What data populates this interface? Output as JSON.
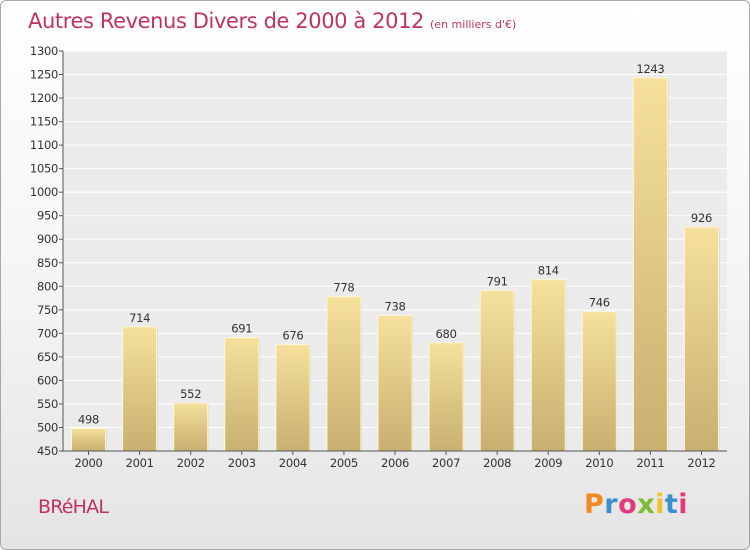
{
  "header": {
    "title": "Autres Revenus Divers de 2000 à 2012",
    "subtitle": "(en milliers d'€)"
  },
  "footer": {
    "town": "BRéHAL",
    "brand": "Proxiti",
    "brand_colors": [
      "#f08a1c",
      "#3a8fd0",
      "#e23b7a",
      "#7dbb2f",
      "#f2c230",
      "#3a8fd0",
      "#e23b7a"
    ]
  },
  "colors": {
    "accent": "#c0335f",
    "bar_top": "#f5e09c",
    "bar_bottom": "#c8b070",
    "grid": "#ffffff",
    "plot_bg": "#ebebeb"
  },
  "chart_data": {
    "type": "bar",
    "categories": [
      "2000",
      "2001",
      "2002",
      "2003",
      "2004",
      "2005",
      "2006",
      "2007",
      "2008",
      "2009",
      "2010",
      "2011",
      "2012"
    ],
    "values": [
      498,
      714,
      552,
      691,
      676,
      778,
      738,
      680,
      791,
      814,
      746,
      1243,
      926
    ],
    "ylim": [
      450,
      1300
    ],
    "yticks": [
      450,
      500,
      550,
      600,
      650,
      700,
      750,
      800,
      850,
      900,
      950,
      1000,
      1050,
      1100,
      1150,
      1200,
      1250,
      1300
    ],
    "grid": true,
    "legend": "none",
    "data_labels": true
  }
}
